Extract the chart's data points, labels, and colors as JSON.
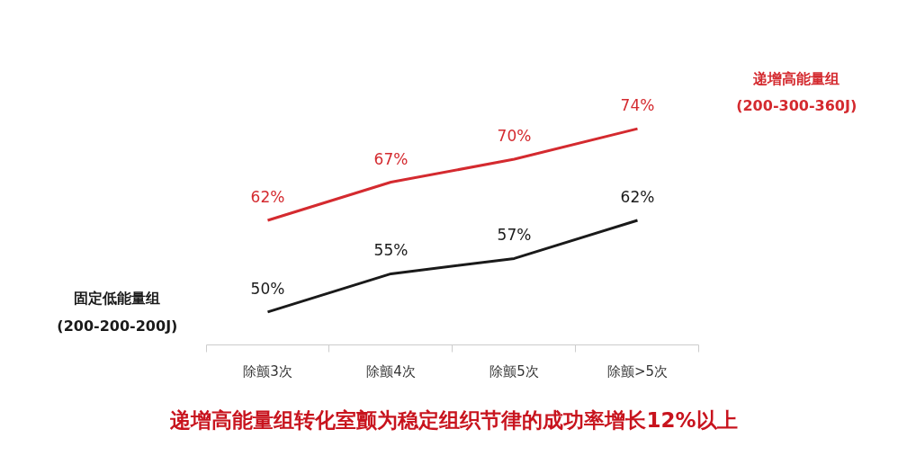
{
  "chart_data": {
    "type": "line",
    "categories": [
      "除颤3次",
      "除颤4次",
      "除颤5次",
      "除颤>5次"
    ],
    "series": [
      {
        "name": "固定低能量组\n(200-200-200J)",
        "color": "#1a1a1a",
        "values": [
          50,
          55,
          57,
          62
        ],
        "value_labels": [
          "50%",
          "55%",
          "57%",
          "62%"
        ]
      },
      {
        "name": "递增高能量组\n(200-300-360J)",
        "color": "#d42a2f",
        "values": [
          62,
          67,
          70,
          74
        ],
        "value_labels": [
          "62%",
          "67%",
          "70%",
          "74%"
        ]
      }
    ],
    "annotations": [
      "递增高能量组转化室颤为稳定组织节律的成功率增长12%以上"
    ]
  }
}
